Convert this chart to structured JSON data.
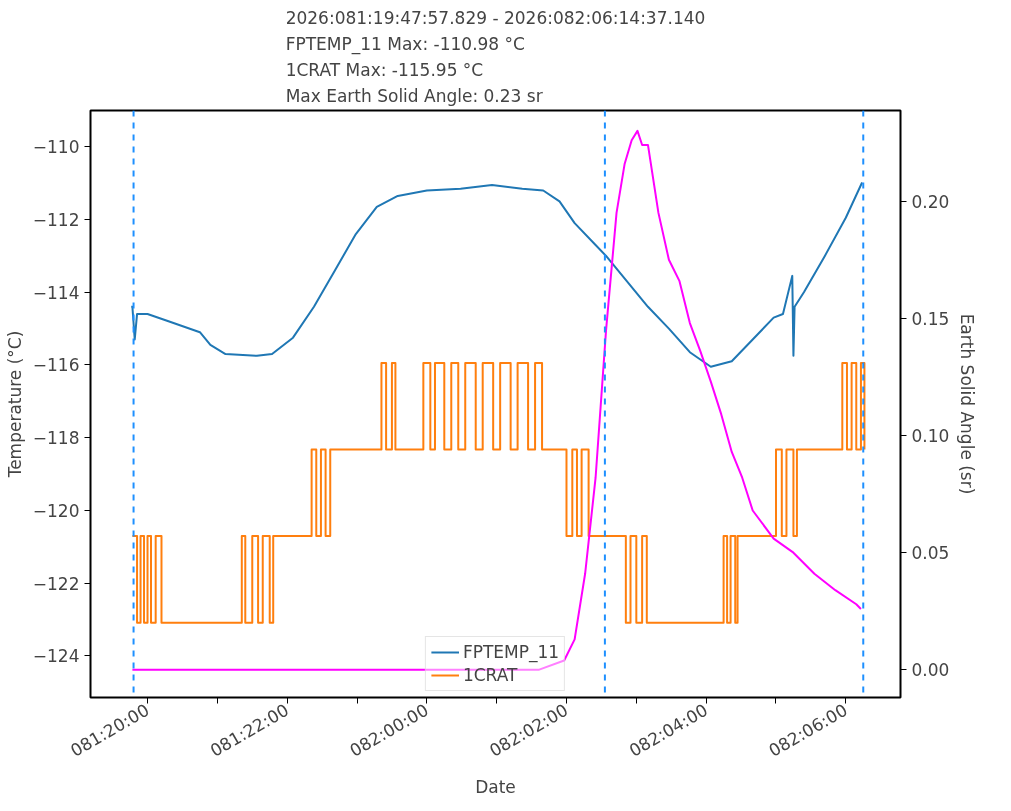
{
  "chart_data": {
    "type": "line",
    "title": "2026:081:19:47:57.829 - 2026:082:06:14:37.140\nFPTEMP_11 Max: -110.98 °C\n1CRAT Max: -115.95 °C\nMax Earth Solid Angle: 0.23 sr",
    "xlabel": "Date",
    "ylabel": "Temperature (°C)",
    "y2label": "Earth Solid Angle (sr)",
    "xlim": [
      "2026-03-22T19:11",
      "2026-03-23T06:47"
    ],
    "ylim": [
      -125.15,
      -109.0
    ],
    "y2lim": [
      -0.0118,
      0.2387
    ],
    "xticks": [
      {
        "value": "2026-03-22T20:00",
        "label": "081:20:00"
      },
      {
        "value": "2026-03-22T21:00",
        "label": null
      },
      {
        "value": "2026-03-22T22:00",
        "label": "081:22:00"
      },
      {
        "value": "2026-03-22T23:00",
        "label": null
      },
      {
        "value": "2026-03-23T00:00",
        "label": "082:00:00"
      },
      {
        "value": "2026-03-23T01:00",
        "label": null
      },
      {
        "value": "2026-03-23T02:00",
        "label": "082:02:00"
      },
      {
        "value": "2026-03-23T03:00",
        "label": null
      },
      {
        "value": "2026-03-23T04:00",
        "label": "082:04:00"
      },
      {
        "value": "2026-03-23T05:00",
        "label": null
      },
      {
        "value": "2026-03-23T06:00",
        "label": "082:06:00"
      }
    ],
    "yticks": [
      -124,
      -122,
      -120,
      -118,
      -116,
      -114,
      -112,
      -110
    ],
    "y2ticks": [
      {
        "value": 0,
        "label": "0.00"
      },
      {
        "value": 0.05,
        "label": "0.05"
      },
      {
        "value": 0.1,
        "label": "0.10"
      },
      {
        "value": 0.15,
        "label": "0.15"
      },
      {
        "value": 0.2,
        "label": "0.20"
      }
    ],
    "grid": false,
    "legend": "bottom",
    "line_style": "solid",
    "marker": "none",
    "ref_lines": [
      {
        "axis": "x",
        "value": "2026-03-22T19:48",
        "color": "#1e90ff",
        "line_style": "dashed"
      },
      {
        "axis": "x",
        "value": "2026-03-23T02:33",
        "color": "#1e90ff",
        "line_style": "dashed"
      },
      {
        "axis": "x",
        "value": "2026-03-23T06:15",
        "color": "#1e90ff",
        "line_style": "dashed"
      }
    ],
    "series": [
      {
        "name": "FPTEMP_11",
        "color": "#1f77b4",
        "x": [
          "2026-03-22T19:46",
          "2026-03-22T19:47",
          "2026-03-22T19:49",
          "2026-03-22T19:51",
          "2026-03-22T20:00",
          "2026-03-22T20:18",
          "2026-03-22T20:45",
          "2026-03-22T20:54",
          "2026-03-22T21:07",
          "2026-03-22T21:34",
          "2026-03-22T21:47",
          "2026-03-22T22:05",
          "2026-03-22T22:23",
          "2026-03-22T22:41",
          "2026-03-22T22:59",
          "2026-03-22T23:17",
          "2026-03-22T23:35",
          "2026-03-23T00:00",
          "2026-03-23T00:29",
          "2026-03-23T00:56",
          "2026-03-23T01:22",
          "2026-03-23T01:40",
          "2026-03-23T01:54",
          "2026-03-23T02:07",
          "2026-03-23T02:25",
          "2026-03-23T02:34",
          "2026-03-23T02:52",
          "2026-03-23T03:10",
          "2026-03-23T03:28",
          "2026-03-23T03:46",
          "2026-03-23T04:04",
          "2026-03-23T04:22",
          "2026-03-23T04:40",
          "2026-03-23T04:58",
          "2026-03-23T05:06",
          "2026-03-23T05:14",
          "2026-03-23T05:15",
          "2026-03-23T05:16",
          "2026-03-23T05:24",
          "2026-03-23T05:42",
          "2026-03-23T06:00",
          "2026-03-23T06:14"
        ],
        "values": [
          -114.4,
          -114.4,
          -115.3,
          -114.6,
          -114.6,
          -114.8,
          -115.1,
          -115.45,
          -115.7,
          -115.75,
          -115.7,
          -115.25,
          -114.4,
          -113.4,
          -112.4,
          -111.65,
          -111.35,
          -111.2,
          -111.15,
          -111.05,
          -111.15,
          -111.2,
          -111.5,
          -112.1,
          -112.7,
          -113.0,
          -113.7,
          -114.4,
          -115.0,
          -115.65,
          -116.05,
          -115.9,
          -115.3,
          -114.7,
          -114.6,
          -113.55,
          -115.75,
          -114.4,
          -114.0,
          -113.0,
          -111.95,
          -110.98
        ]
      },
      {
        "name": "1CRAT",
        "color": "#ff7f0e",
        "type": "step",
        "x": [
          "2026-03-22T19:47",
          "2026-03-22T19:51",
          "2026-03-22T19:54",
          "2026-03-22T19:57",
          "2026-03-22T20:00",
          "2026-03-22T20:03",
          "2026-03-22T20:07",
          "2026-03-22T20:12",
          "2026-03-22T21:21",
          "2026-03-22T21:24",
          "2026-03-22T21:30",
          "2026-03-22T21:35",
          "2026-03-22T21:39",
          "2026-03-22T21:45",
          "2026-03-22T21:48",
          "2026-03-22T22:21",
          "2026-03-22T22:25",
          "2026-03-22T22:29",
          "2026-03-22T22:33",
          "2026-03-22T22:37",
          "2026-03-22T23:21",
          "2026-03-22T23:25",
          "2026-03-22T23:30",
          "2026-03-22T23:33",
          "2026-03-22T23:57",
          "2026-03-23T00:03",
          "2026-03-23T00:07",
          "2026-03-23T00:15",
          "2026-03-23T00:21",
          "2026-03-23T00:27",
          "2026-03-23T00:33",
          "2026-03-23T00:42",
          "2026-03-23T00:48",
          "2026-03-23T00:57",
          "2026-03-23T01:03",
          "2026-03-23T01:12",
          "2026-03-23T01:18",
          "2026-03-23T01:27",
          "2026-03-23T01:33",
          "2026-03-23T01:39",
          "2026-03-23T02:00",
          "2026-03-23T02:05",
          "2026-03-23T02:09",
          "2026-03-23T02:13",
          "2026-03-23T02:19",
          "2026-03-23T02:51",
          "2026-03-23T02:55",
          "2026-03-23T03:00",
          "2026-03-23T03:05",
          "2026-03-23T03:09",
          "2026-03-23T04:15",
          "2026-03-23T04:18",
          "2026-03-23T04:21",
          "2026-03-23T04:25",
          "2026-03-23T04:27",
          "2026-03-23T05:00",
          "2026-03-23T05:05",
          "2026-03-23T05:09",
          "2026-03-23T05:15",
          "2026-03-23T05:18",
          "2026-03-23T05:57",
          "2026-03-23T06:01",
          "2026-03-23T06:05",
          "2026-03-23T06:09",
          "2026-03-23T06:13",
          "2026-03-23T06:16"
        ],
        "values": [
          -120.71,
          -123.09,
          -120.71,
          -123.09,
          -120.71,
          -123.09,
          -120.71,
          -123.09,
          -120.71,
          -123.09,
          -120.71,
          -123.09,
          -120.71,
          -123.09,
          -120.71,
          -118.33,
          -120.71,
          -118.33,
          -120.71,
          -118.33,
          -115.95,
          -118.33,
          -115.95,
          -118.33,
          -115.95,
          -118.33,
          -115.95,
          -118.33,
          -115.95,
          -118.33,
          -115.95,
          -118.33,
          -115.95,
          -118.33,
          -115.95,
          -118.33,
          -115.95,
          -118.33,
          -115.95,
          -118.33,
          -120.71,
          -118.33,
          -120.71,
          -118.33,
          -120.71,
          -123.09,
          -120.71,
          -123.09,
          -120.71,
          -123.09,
          -120.71,
          -123.09,
          -120.71,
          -123.09,
          -120.71,
          -118.33,
          -120.71,
          -118.33,
          -120.71,
          -118.33,
          -115.95,
          -118.33,
          -115.95,
          -118.33,
          -115.95,
          -118.33
        ]
      },
      {
        "color": "#ff00ff",
        "axis": "y2",
        "x": [
          "2026-03-22T19:47",
          "2026-03-23T01:36",
          "2026-03-23T01:58",
          "2026-03-23T02:07",
          "2026-03-23T02:16",
          "2026-03-23T02:25",
          "2026-03-23T02:34",
          "2026-03-23T02:43",
          "2026-03-23T02:50",
          "2026-03-23T02:56",
          "2026-03-23T03:01",
          "2026-03-23T03:05",
          "2026-03-23T03:10",
          "2026-03-23T03:19",
          "2026-03-23T03:28",
          "2026-03-23T03:37",
          "2026-03-23T03:46",
          "2026-03-23T03:55",
          "2026-03-23T04:04",
          "2026-03-23T04:13",
          "2026-03-23T04:22",
          "2026-03-23T04:31",
          "2026-03-23T04:40",
          "2026-03-23T04:58",
          "2026-03-23T05:15",
          "2026-03-23T05:33",
          "2026-03-23T05:51",
          "2026-03-23T06:09",
          "2026-03-23T06:13"
        ],
        "values": [
          0,
          0,
          0.004,
          0.013,
          0.041,
          0.082,
          0.145,
          0.195,
          0.216,
          0.226,
          0.23,
          0.224,
          0.224,
          0.195,
          0.175,
          0.166,
          0.148,
          0.136,
          0.123,
          0.109,
          0.093,
          0.082,
          0.068,
          0.056,
          0.05,
          0.041,
          0.034,
          0.028,
          0.026
        ]
      }
    ]
  }
}
